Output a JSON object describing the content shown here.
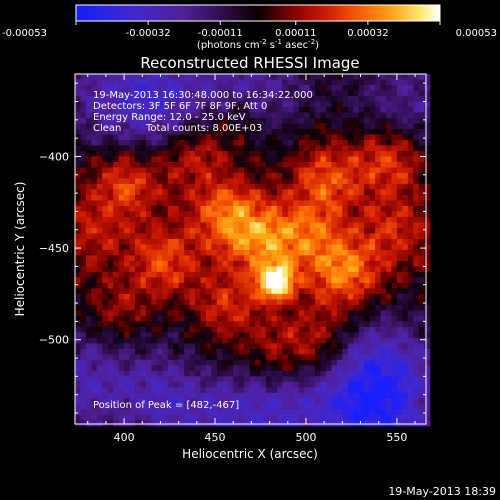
{
  "chart_data": {
    "type": "heatmap",
    "title": "Reconstructed RHESSI Image",
    "xlabel": "Heliocentric X (arcsec)",
    "ylabel": "Heliocentric Y (arcsec)",
    "xlim": [
      373,
      566
    ],
    "ylim": [
      -546,
      -355
    ],
    "x_ticks": [
      400,
      450,
      500,
      550
    ],
    "y_ticks": [
      -400,
      -450,
      -500
    ],
    "colorbar": {
      "ticks": [
        "-0.00053",
        "-0.00032",
        "-0.00011",
        "0.00011",
        "0.00032",
        "0.00053"
      ],
      "range": [
        -0.00053,
        0.00053
      ],
      "unit_label_parts": [
        "(photons cm",
        "-2",
        " s",
        "-1",
        " asec",
        "-2",
        ")"
      ],
      "colormap": "blue-purple-black-red-orange-yellow-white"
    },
    "annotations": {
      "time_range": "19-May-2013 16:30:48.000 to 16:34:22.000",
      "detectors": "Detectors: 3F 5F 6F 7F 8F 9F, Att 0",
      "energy_range": "Energy Range: 12.0 - 25.0 keV",
      "clean_label": "Clean",
      "total_counts": "Total counts: 8.00E+03",
      "peak_position": "Position of Peak = [482,-467]"
    },
    "peak": [
      482,
      -467
    ],
    "sources": [
      {
        "x": 482,
        "y": -467,
        "amp": 0.00053
      },
      {
        "x": 455,
        "y": -430,
        "amp": 0.0003
      },
      {
        "x": 520,
        "y": -462,
        "amp": 0.00033
      },
      {
        "x": 420,
        "y": -455,
        "amp": 0.00024
      },
      {
        "x": 400,
        "y": -412,
        "amp": 0.00027
      },
      {
        "x": 435,
        "y": -396,
        "amp": 0.00025
      },
      {
        "x": 510,
        "y": -410,
        "amp": 0.00026
      },
      {
        "x": 545,
        "y": -400,
        "amp": 0.00027
      },
      {
        "x": 548,
        "y": -440,
        "amp": 0.00019
      },
      {
        "x": 455,
        "y": -480,
        "amp": 0.0002
      },
      {
        "x": 505,
        "y": -500,
        "amp": 0.00019
      },
      {
        "x": 480,
        "y": -508,
        "amp": 0.00016
      },
      {
        "x": 395,
        "y": -485,
        "amp": 0.00015
      },
      {
        "x": 440,
        "y": -515,
        "amp": 0.00013
      },
      {
        "x": 380,
        "y": -440,
        "amp": 0.00016
      },
      {
        "x": 460,
        "y": -380,
        "amp": 0.00014
      },
      {
        "x": 475,
        "y": -445,
        "amp": 0.00028
      },
      {
        "x": 500,
        "y": -440,
        "amp": 0.00022
      }
    ],
    "negative_regions": [
      {
        "x": 420,
        "y": -372,
        "amp": -0.0003
      },
      {
        "x": 430,
        "y": -530,
        "amp": -0.00032
      },
      {
        "x": 480,
        "y": -540,
        "amp": -0.0003
      },
      {
        "x": 540,
        "y": -515,
        "amp": -0.00028
      },
      {
        "x": 555,
        "y": -370,
        "amp": -0.0002
      },
      {
        "x": 375,
        "y": -520,
        "amp": -0.00026
      },
      {
        "x": 535,
        "y": -540,
        "amp": -0.00034
      },
      {
        "x": 470,
        "y": -360,
        "amp": -0.00024
      },
      {
        "x": 387,
        "y": -362,
        "amp": -0.00018
      }
    ]
  },
  "footer": {
    "timestamp": "19-May-2013 18:39"
  }
}
